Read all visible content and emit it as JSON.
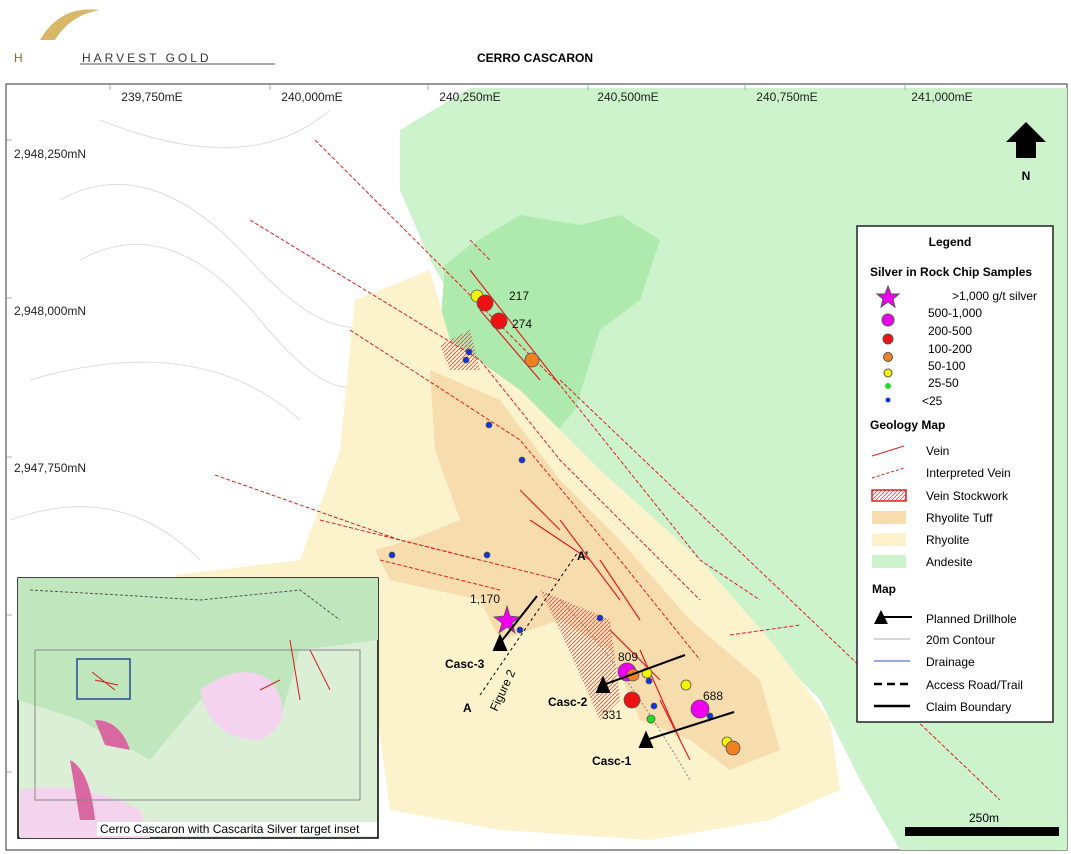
{
  "header": {
    "logo_text": "HARVEST GOLD",
    "title": "CERRO CASCARON"
  },
  "grid": {
    "x_labels": [
      "239,750mE",
      "240,000mE",
      "240,250mE",
      "240,500mE",
      "240,750mE",
      "241,000mE"
    ],
    "y_labels": [
      "2,948,250mN",
      "2,948,000mN",
      "2,947,750mN"
    ]
  },
  "north": "N",
  "samples": [
    "217",
    "274",
    "1,170",
    "809",
    "331",
    "688"
  ],
  "drillholes": [
    "Casc-1",
    "Casc-2",
    "Casc-3"
  ],
  "section": {
    "start": "A",
    "end": "A’",
    "label": "Figure 2"
  },
  "legend": {
    "title": "Legend",
    "samples_heading": "Silver in Rock Chip Samples",
    "samples": [
      ">1,000 g/t silver",
      "500-1,000",
      "200-500",
      "100-200",
      "50-100",
      "25-50",
      "<25"
    ],
    "geology_heading": "Geology Map",
    "geology": [
      "Vein",
      "Interpreted Vein",
      "Vein Stockwork",
      "Rhyolite Tuff",
      "Rhyolite",
      "Andesite"
    ],
    "map_heading": "Map",
    "map": [
      "Planned Drillhole",
      "20m Contour",
      "Drainage",
      "Access Road/Trail",
      "Claim Boundary"
    ]
  },
  "inset_caption": "Cerro Cascaron with Cascarita Silver target inset",
  "scale": "250m"
}
